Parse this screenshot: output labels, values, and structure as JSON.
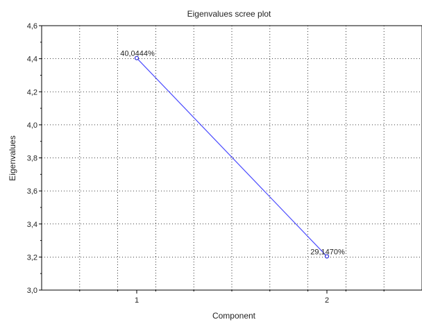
{
  "chart_data": {
    "type": "line",
    "title": "Eigenvalues scree plot",
    "xlabel": "Component",
    "ylabel": "Eigenvalues",
    "x": [
      1,
      2
    ],
    "xlim": [
      0.5,
      2.5
    ],
    "ylim": [
      3.0,
      4.6
    ],
    "y_ticks": [
      "3,0",
      "3,2",
      "3,4",
      "3,6",
      "3,8",
      "4,0",
      "4,2",
      "4,4",
      "4,6"
    ],
    "x_ticks": [
      "1",
      "2"
    ],
    "series": [
      {
        "values": [
          4.404,
          3.204
        ],
        "labels": [
          "40,0444%",
          "29,1470%"
        ]
      }
    ],
    "grid": true,
    "line_color": "#4a4aff",
    "point_color": "#2a2ad8"
  }
}
